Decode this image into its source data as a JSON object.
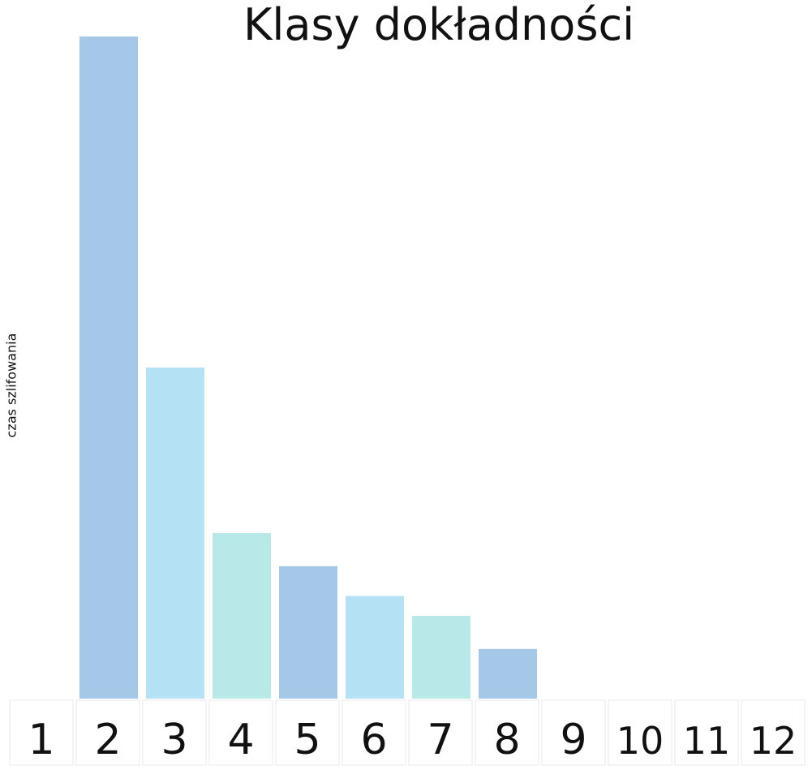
{
  "chart_data": {
    "type": "bar",
    "title": "Klasy dokładności",
    "ylabel": "czas szlifowania",
    "xlabel": "",
    "categories": [
      "1",
      "2",
      "3",
      "4",
      "5",
      "6",
      "7",
      "8",
      "9",
      "10",
      "11",
      "12"
    ],
    "values": [
      0,
      100,
      50,
      25,
      20,
      15.5,
      12.5,
      7.5,
      0,
      0,
      0,
      0
    ],
    "ylim": [
      0,
      100
    ],
    "bar_colors": [
      "#a6c8e8",
      "#a6c8e8",
      "#b4e1f3",
      "#b9e8e8",
      "#a6c8e8",
      "#b4e1f3",
      "#b9e8e8",
      "#a6c8e8",
      "#a6c8e8",
      "#a6c8e8",
      "#a6c8e8",
      "#a6c8e8"
    ],
    "axis_box_color": "#e8e8e8",
    "grid": false
  }
}
